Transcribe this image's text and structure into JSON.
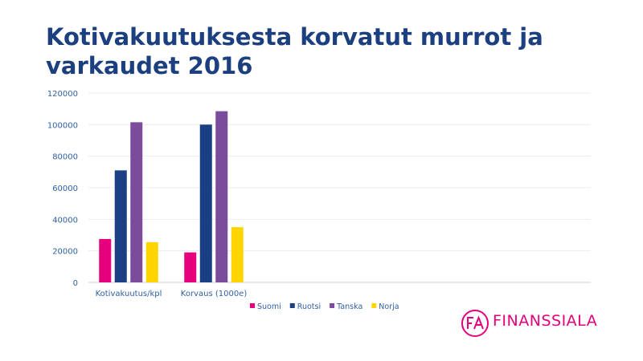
{
  "title_lines": [
    "Kotivakuutuksesta korvatut murrot ja",
    "varkaudet 2016"
  ],
  "logo": {
    "mark": "FA",
    "word": "FINANSSIALA",
    "color": "#e5007e"
  },
  "chart_data": {
    "type": "bar",
    "categories": [
      "Kotivakuutus/kpl",
      "Korvaus (1000e)"
    ],
    "series": [
      {
        "name": "Suomi",
        "color": "#e6007e",
        "values": [
          27500,
          19000
        ]
      },
      {
        "name": "Ruotsi",
        "color": "#1b3f85",
        "values": [
          71000,
          100000
        ]
      },
      {
        "name": "Tanska",
        "color": "#7b4c9c",
        "values": [
          101500,
          108500
        ]
      },
      {
        "name": "Norja",
        "color": "#ffd500",
        "values": [
          25500,
          35000
        ]
      }
    ],
    "ylim": [
      0,
      120000
    ],
    "yticks": [
      0,
      20000,
      40000,
      60000,
      80000,
      100000,
      120000
    ],
    "grid": true,
    "legend": "bottom",
    "axis_text_color": "#2e5fa3"
  }
}
